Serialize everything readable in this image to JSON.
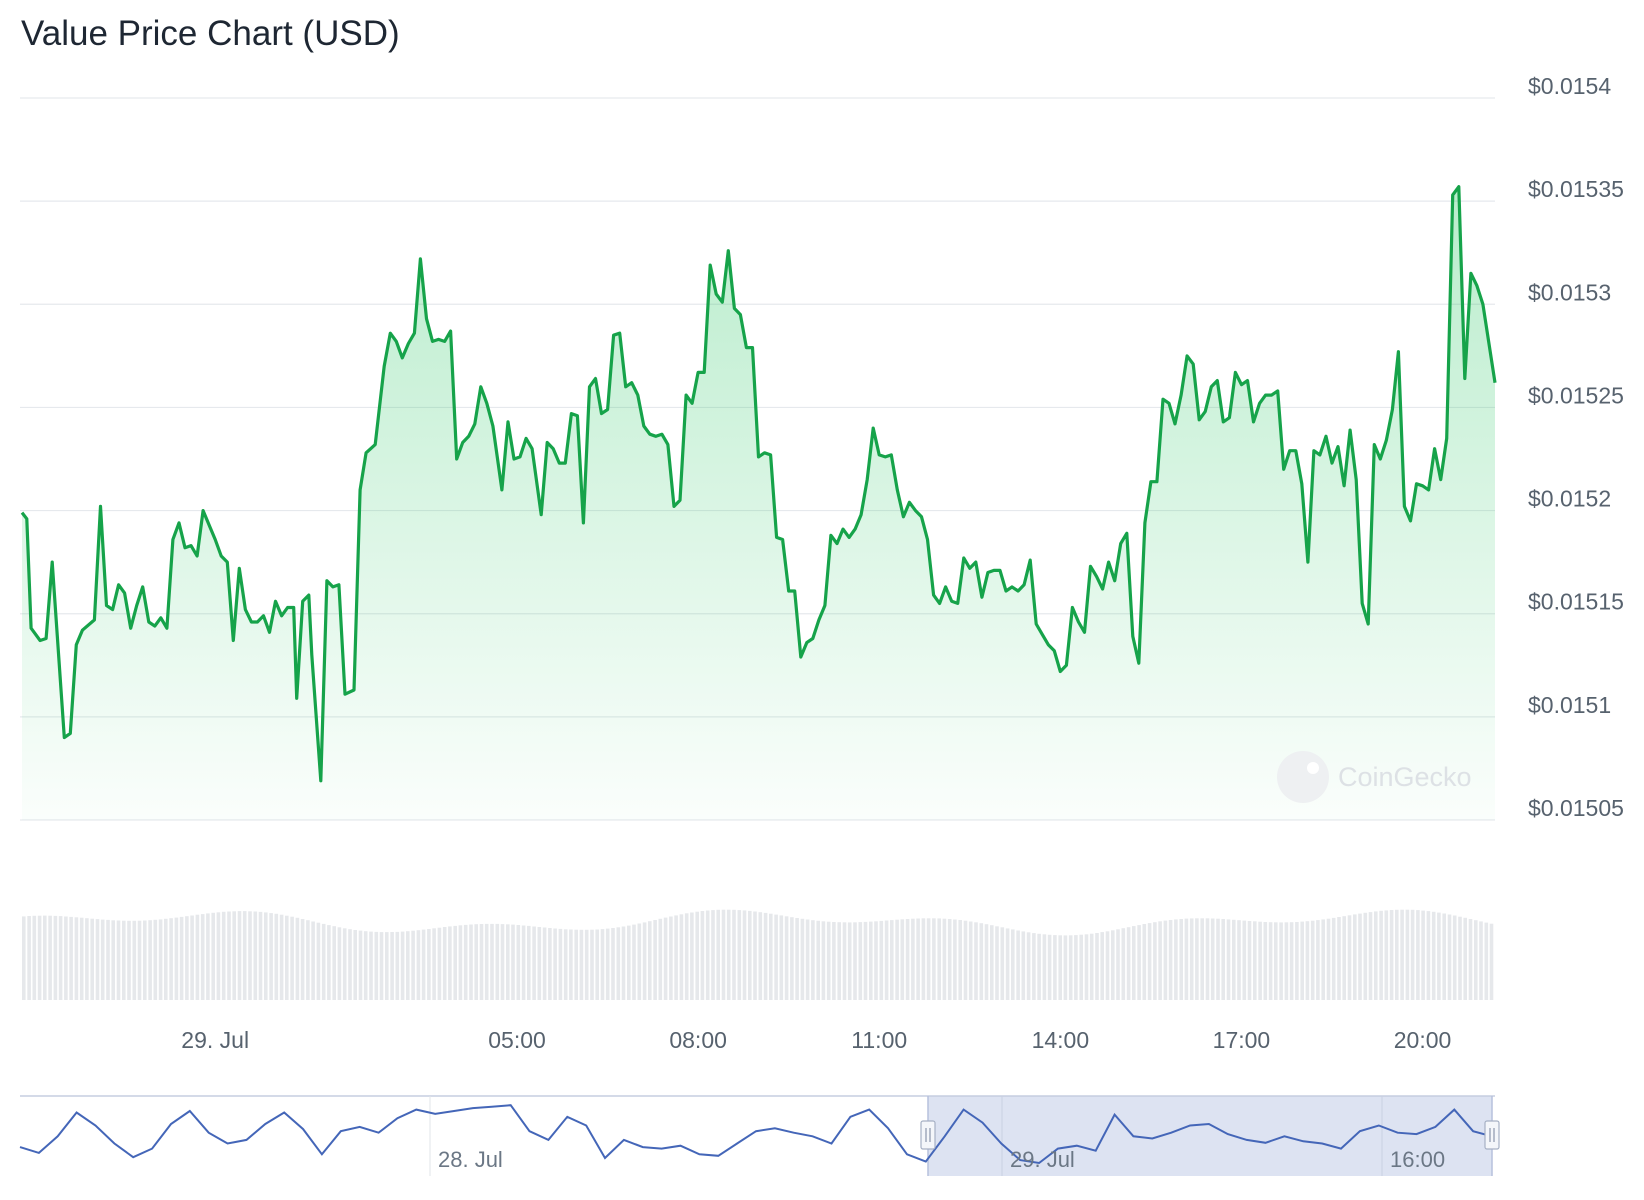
{
  "page": {
    "title": "Value Price Chart (USD)"
  },
  "watermark": {
    "text": "CoinGecko"
  },
  "colors": {
    "line": "#16a34a",
    "fill": "#22c55e",
    "grid": "#e6e9ed",
    "volume": "#e6e8eb",
    "navigator_line": "#4466b8",
    "navigator_mask": "#dde3f2"
  },
  "chart_data": {
    "type": "area",
    "title": "Value Price Chart (USD)",
    "yunit": "USD",
    "ylim": [
      0.01505,
      0.0154
    ],
    "yticks": [
      {
        "value": 0.0154,
        "label": "$0.0154"
      },
      {
        "value": 0.01535,
        "label": "$0.01535"
      },
      {
        "value": 0.0153,
        "label": "$0.0153"
      },
      {
        "value": 0.01525,
        "label": "$0.01525"
      },
      {
        "value": 0.0152,
        "label": "$0.0152"
      },
      {
        "value": 0.01515,
        "label": "$0.01515"
      },
      {
        "value": 0.0151,
        "label": "$0.0151"
      },
      {
        "value": 0.01505,
        "label": "$0.01505"
      }
    ],
    "xlim": [
      -3.2,
      21.2
    ],
    "xticks": [
      {
        "hour": 0,
        "label": "29. Jul"
      },
      {
        "hour": 5,
        "label": "05:00"
      },
      {
        "hour": 8,
        "label": "08:00"
      },
      {
        "hour": 11,
        "label": "11:00"
      },
      {
        "hour": 14,
        "label": "14:00"
      },
      {
        "hour": 17,
        "label": "17:00"
      },
      {
        "hour": 20,
        "label": "20:00"
      }
    ],
    "x_unit": "hours relative to 29 Jul 00:00",
    "grid": true,
    "series": [
      {
        "points": [
          [
            -3.2,
            0.015199
          ],
          [
            -3.12,
            0.015196
          ],
          [
            -3.05,
            0.015143
          ],
          [
            -2.9,
            0.015137
          ],
          [
            -2.8,
            0.015138
          ],
          [
            -2.7,
            0.015175
          ],
          [
            -2.5,
            0.01509
          ],
          [
            -2.4,
            0.015092
          ],
          [
            -2.3,
            0.015135
          ],
          [
            -2.2,
            0.015142
          ],
          [
            -2.0,
            0.015147
          ],
          [
            -1.9,
            0.015202
          ],
          [
            -1.8,
            0.015154
          ],
          [
            -1.7,
            0.015152
          ],
          [
            -1.6,
            0.015164
          ],
          [
            -1.5,
            0.01516
          ],
          [
            -1.4,
            0.015143
          ],
          [
            -1.3,
            0.015154
          ],
          [
            -1.2,
            0.015163
          ],
          [
            -1.1,
            0.015146
          ],
          [
            -1.0,
            0.015144
          ],
          [
            -0.9,
            0.015148
          ],
          [
            -0.8,
            0.015143
          ],
          [
            -0.7,
            0.015186
          ],
          [
            -0.6,
            0.015194
          ],
          [
            -0.5,
            0.015182
          ],
          [
            -0.4,
            0.015183
          ],
          [
            -0.3,
            0.015178
          ],
          [
            -0.2,
            0.0152
          ],
          [
            -0.1,
            0.015193
          ],
          [
            0.0,
            0.015186
          ],
          [
            0.1,
            0.015178
          ],
          [
            0.2,
            0.015175
          ],
          [
            0.3,
            0.015137
          ],
          [
            0.4,
            0.015172
          ],
          [
            0.5,
            0.015152
          ],
          [
            0.6,
            0.015146
          ],
          [
            0.7,
            0.015146
          ],
          [
            0.8,
            0.015149
          ],
          [
            0.9,
            0.015141
          ],
          [
            1.0,
            0.015156
          ],
          [
            1.1,
            0.015149
          ],
          [
            1.2,
            0.015153
          ],
          [
            1.3,
            0.015153
          ],
          [
            1.35,
            0.015109
          ],
          [
            1.45,
            0.015156
          ],
          [
            1.55,
            0.015159
          ],
          [
            1.6,
            0.01513
          ],
          [
            1.75,
            0.015069
          ],
          [
            1.85,
            0.015166
          ],
          [
            1.95,
            0.015163
          ],
          [
            2.05,
            0.015164
          ],
          [
            2.15,
            0.015111
          ],
          [
            2.3,
            0.015113
          ],
          [
            2.4,
            0.01521
          ],
          [
            2.5,
            0.015228
          ],
          [
            2.65,
            0.015232
          ],
          [
            2.8,
            0.01527
          ],
          [
            2.9,
            0.015286
          ],
          [
            3.0,
            0.015282
          ],
          [
            3.1,
            0.015274
          ],
          [
            3.2,
            0.015281
          ],
          [
            3.3,
            0.015286
          ],
          [
            3.4,
            0.015322
          ],
          [
            3.5,
            0.015293
          ],
          [
            3.6,
            0.015282
          ],
          [
            3.7,
            0.015283
          ],
          [
            3.8,
            0.015282
          ],
          [
            3.9,
            0.015287
          ],
          [
            4.0,
            0.015225
          ],
          [
            4.1,
            0.015233
          ],
          [
            4.2,
            0.015236
          ],
          [
            4.3,
            0.015242
          ],
          [
            4.4,
            0.01526
          ],
          [
            4.5,
            0.015252
          ],
          [
            4.6,
            0.015241
          ],
          [
            4.75,
            0.01521
          ],
          [
            4.85,
            0.015243
          ],
          [
            4.95,
            0.015225
          ],
          [
            5.05,
            0.015226
          ],
          [
            5.15,
            0.015235
          ],
          [
            5.25,
            0.01523
          ],
          [
            5.4,
            0.015198
          ],
          [
            5.5,
            0.015233
          ],
          [
            5.6,
            0.01523
          ],
          [
            5.7,
            0.015223
          ],
          [
            5.8,
            0.015223
          ],
          [
            5.9,
            0.015247
          ],
          [
            6.0,
            0.015246
          ],
          [
            6.1,
            0.015194
          ],
          [
            6.2,
            0.01526
          ],
          [
            6.3,
            0.015264
          ],
          [
            6.4,
            0.015247
          ],
          [
            6.5,
            0.015249
          ],
          [
            6.6,
            0.015285
          ],
          [
            6.7,
            0.015286
          ],
          [
            6.8,
            0.01526
          ],
          [
            6.9,
            0.015262
          ],
          [
            7.0,
            0.015256
          ],
          [
            7.1,
            0.015241
          ],
          [
            7.2,
            0.015237
          ],
          [
            7.3,
            0.015236
          ],
          [
            7.4,
            0.015237
          ],
          [
            7.5,
            0.015232
          ],
          [
            7.6,
            0.015202
          ],
          [
            7.7,
            0.015205
          ],
          [
            7.8,
            0.015256
          ],
          [
            7.9,
            0.015252
          ],
          [
            8.0,
            0.015267
          ],
          [
            8.1,
            0.015267
          ],
          [
            8.2,
            0.015319
          ],
          [
            8.3,
            0.015305
          ],
          [
            8.4,
            0.015301
          ],
          [
            8.5,
            0.015326
          ],
          [
            8.6,
            0.015298
          ],
          [
            8.7,
            0.015295
          ],
          [
            8.8,
            0.015279
          ],
          [
            8.9,
            0.015279
          ],
          [
            9.0,
            0.015226
          ],
          [
            9.1,
            0.015228
          ],
          [
            9.2,
            0.015227
          ],
          [
            9.3,
            0.015187
          ],
          [
            9.4,
            0.015186
          ],
          [
            9.5,
            0.015161
          ],
          [
            9.6,
            0.015161
          ],
          [
            9.7,
            0.015129
          ],
          [
            9.8,
            0.015136
          ],
          [
            9.9,
            0.015138
          ],
          [
            10.0,
            0.015147
          ],
          [
            10.1,
            0.015154
          ],
          [
            10.2,
            0.015188
          ],
          [
            10.3,
            0.015184
          ],
          [
            10.4,
            0.015191
          ],
          [
            10.5,
            0.015187
          ],
          [
            10.6,
            0.015191
          ],
          [
            10.7,
            0.015198
          ],
          [
            10.8,
            0.015215
          ],
          [
            10.9,
            0.01524
          ],
          [
            11.0,
            0.015227
          ],
          [
            11.1,
            0.015226
          ],
          [
            11.2,
            0.015227
          ],
          [
            11.3,
            0.01521
          ],
          [
            11.4,
            0.015197
          ],
          [
            11.5,
            0.015204
          ],
          [
            11.6,
            0.0152
          ],
          [
            11.7,
            0.015197
          ],
          [
            11.8,
            0.015186
          ],
          [
            11.9,
            0.015159
          ],
          [
            12.0,
            0.015155
          ],
          [
            12.1,
            0.015163
          ],
          [
            12.2,
            0.015156
          ],
          [
            12.3,
            0.015155
          ],
          [
            12.4,
            0.015177
          ],
          [
            12.5,
            0.015172
          ],
          [
            12.6,
            0.015175
          ],
          [
            12.7,
            0.015158
          ],
          [
            12.8,
            0.01517
          ],
          [
            12.9,
            0.015171
          ],
          [
            13.0,
            0.015171
          ],
          [
            13.1,
            0.015161
          ],
          [
            13.2,
            0.015163
          ],
          [
            13.3,
            0.015161
          ],
          [
            13.4,
            0.015164
          ],
          [
            13.5,
            0.015176
          ],
          [
            13.6,
            0.015145
          ],
          [
            13.7,
            0.01514
          ],
          [
            13.8,
            0.015135
          ],
          [
            13.9,
            0.015132
          ],
          [
            14.0,
            0.015122
          ],
          [
            14.1,
            0.015125
          ],
          [
            14.2,
            0.015153
          ],
          [
            14.3,
            0.015146
          ],
          [
            14.4,
            0.015141
          ],
          [
            14.5,
            0.015173
          ],
          [
            14.6,
            0.015168
          ],
          [
            14.7,
            0.015162
          ],
          [
            14.8,
            0.015175
          ],
          [
            14.9,
            0.015166
          ],
          [
            15.0,
            0.015184
          ],
          [
            15.1,
            0.015189
          ],
          [
            15.2,
            0.015139
          ],
          [
            15.3,
            0.015126
          ],
          [
            15.4,
            0.015194
          ],
          [
            15.5,
            0.015214
          ],
          [
            15.6,
            0.015214
          ],
          [
            15.7,
            0.015254
          ],
          [
            15.8,
            0.015252
          ],
          [
            15.9,
            0.015242
          ],
          [
            16.0,
            0.015256
          ],
          [
            16.1,
            0.015275
          ],
          [
            16.2,
            0.015271
          ],
          [
            16.3,
            0.015244
          ],
          [
            16.4,
            0.015248
          ],
          [
            16.5,
            0.01526
          ],
          [
            16.6,
            0.015263
          ],
          [
            16.7,
            0.015243
          ],
          [
            16.8,
            0.015245
          ],
          [
            16.9,
            0.015267
          ],
          [
            17.0,
            0.015261
          ],
          [
            17.1,
            0.015263
          ],
          [
            17.2,
            0.015243
          ],
          [
            17.3,
            0.015252
          ],
          [
            17.4,
            0.015256
          ],
          [
            17.5,
            0.015256
          ],
          [
            17.6,
            0.015258
          ],
          [
            17.7,
            0.01522
          ],
          [
            17.8,
            0.015229
          ],
          [
            17.9,
            0.015229
          ],
          [
            18.0,
            0.015213
          ],
          [
            18.1,
            0.015175
          ],
          [
            18.2,
            0.015229
          ],
          [
            18.3,
            0.015227
          ],
          [
            18.4,
            0.015236
          ],
          [
            18.5,
            0.015223
          ],
          [
            18.6,
            0.015231
          ],
          [
            18.7,
            0.015212
          ],
          [
            18.8,
            0.015239
          ],
          [
            18.9,
            0.015215
          ],
          [
            19.0,
            0.015155
          ],
          [
            19.1,
            0.015145
          ],
          [
            19.2,
            0.015232
          ],
          [
            19.3,
            0.015225
          ],
          [
            19.4,
            0.015234
          ],
          [
            19.5,
            0.015249
          ],
          [
            19.6,
            0.015277
          ],
          [
            19.7,
            0.015202
          ],
          [
            19.8,
            0.015195
          ],
          [
            19.9,
            0.015213
          ],
          [
            20.0,
            0.015212
          ],
          [
            20.1,
            0.01521
          ],
          [
            20.2,
            0.01523
          ],
          [
            20.3,
            0.015215
          ],
          [
            20.4,
            0.015235
          ],
          [
            20.5,
            0.015353
          ],
          [
            20.6,
            0.015357
          ],
          [
            20.7,
            0.015264
          ],
          [
            20.8,
            0.015315
          ],
          [
            20.9,
            0.015309
          ],
          [
            21.0,
            0.0153
          ],
          [
            21.2,
            0.015262
          ]
        ]
      }
    ],
    "navigator": {
      "labels": [
        {
          "text": "28. Jul"
        },
        {
          "text": "29. Jul"
        },
        {
          "text": "16:00"
        }
      ]
    }
  }
}
